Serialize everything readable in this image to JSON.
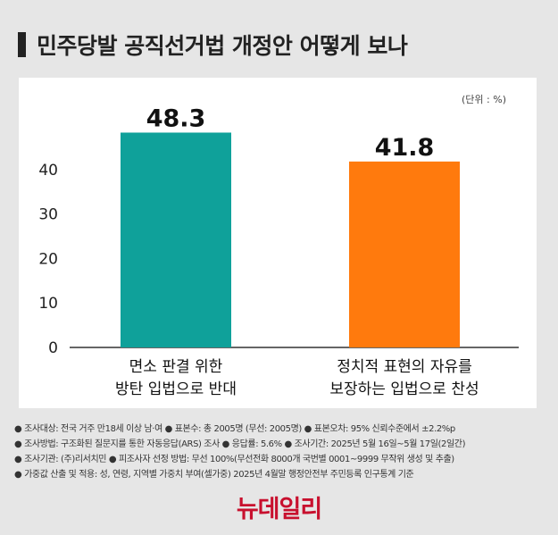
{
  "title": "민주당발 공직선거법 개정안 어떻게 보나",
  "unit_label": "(단위 : %)",
  "chart_data": {
    "type": "bar",
    "categories": [
      [
        "면소 판결 위한",
        "방탄 입법으로 반대"
      ],
      [
        "정치적 표현의 자유를",
        "보장하는 입법으로 찬성"
      ]
    ],
    "values": [
      48.3,
      41.8
    ],
    "value_labels": [
      "48.3",
      "41.8"
    ],
    "colors": [
      "#0fa19a",
      "#ff7a0d"
    ],
    "yticks": [
      0,
      10,
      20,
      30,
      40
    ],
    "ylim": [
      0,
      50
    ],
    "grid": false
  },
  "footnotes": [
    "● 조사대상: 전국 거주 만18세 이상 남·여 ● 표본수: 총 2005명 (무선: 2005명) ● 표본오차: 95% 신뢰수준에서 ±2.2%p",
    "● 조사방법: 구조화된 질문지를 통한 자동응답(ARS) 조사 ● 응답률: 5.6% ● 조사기간: 2025년 5월 16일~5월 17일(2일간)",
    "● 조사기관: (주)리서치민 ● 피조사자 선정 방법: 무선 100%(무선전화 8000개 국번별 0001~9999 무작위 생성 및 추출)",
    "● 가중값 산출 및 적용: 성, 연령, 지역별 가중치 부여(셀가중) 2025년 4월말 행정안전부 주민등록 인구통계 기준"
  ],
  "logo": "뉴데일리"
}
